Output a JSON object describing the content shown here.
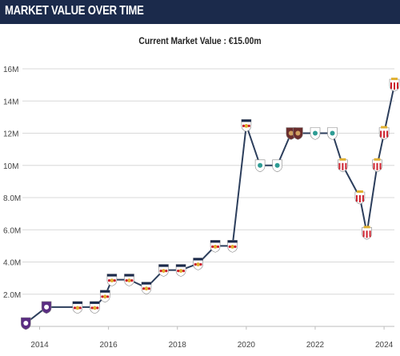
{
  "header": {
    "title": "MARKET VALUE OVER TIME"
  },
  "subtitle": "Current Market Value : €15.00m",
  "colors": {
    "header_bg": "#1b2a4b",
    "line": "#2c3e5c",
    "grid": "#d8d8d8",
    "badge_red": "#cc1f2b",
    "badge_white": "#ffffff",
    "badge_gold": "#e0b030",
    "badge_purple": "#5a2d82",
    "badge_teal": "#2e9c94"
  },
  "chart_data": {
    "type": "line",
    "title": "",
    "xlabel": "",
    "ylabel": "",
    "xlim": [
      2013.5,
      2024.3
    ],
    "ylim": [
      0,
      16
    ],
    "y_ticks": [
      2,
      4,
      6,
      8,
      10,
      12,
      14,
      16
    ],
    "y_tick_labels": [
      "2.0M",
      "4.0M",
      "6.0M",
      "8.0M",
      "10M",
      "12M",
      "14M",
      "16M"
    ],
    "x_ticks": [
      2014,
      2016,
      2018,
      2020,
      2022,
      2024
    ],
    "x_tick_labels": [
      "2014",
      "2016",
      "2018",
      "2020",
      "2022",
      "2024"
    ],
    "grid": true,
    "series": [
      {
        "values": [
          {
            "x": 2013.6,
            "y": 0.2,
            "badge": "purple-crest"
          },
          {
            "x": 2014.2,
            "y": 1.2,
            "badge": "purple-crest"
          },
          {
            "x": 2015.1,
            "y": 1.2,
            "badge": "redbull-crest"
          },
          {
            "x": 2015.6,
            "y": 1.2,
            "badge": "redbull-crest"
          },
          {
            "x": 2015.9,
            "y": 1.9,
            "badge": "redbull-crest"
          },
          {
            "x": 2016.1,
            "y": 2.9,
            "badge": "redbull-crest"
          },
          {
            "x": 2016.6,
            "y": 2.9,
            "badge": "redbull-crest"
          },
          {
            "x": 2017.1,
            "y": 2.4,
            "badge": "redbull-crest"
          },
          {
            "x": 2017.6,
            "y": 3.5,
            "badge": "redbull-crest"
          },
          {
            "x": 2018.1,
            "y": 3.5,
            "badge": "redbull-crest"
          },
          {
            "x": 2018.6,
            "y": 3.9,
            "badge": "redbull-crest"
          },
          {
            "x": 2019.1,
            "y": 5.0,
            "badge": "redbull-crest"
          },
          {
            "x": 2019.6,
            "y": 5.0,
            "badge": "redbull-crest"
          },
          {
            "x": 2020.0,
            "y": 12.5,
            "badge": "redbull-crest"
          },
          {
            "x": 2020.4,
            "y": 10.0,
            "badge": "liverbird-crest"
          },
          {
            "x": 2020.9,
            "y": 10.0,
            "badge": "liverbird-crest"
          },
          {
            "x": 2021.3,
            "y": 12.0,
            "badge": "brown-crest"
          },
          {
            "x": 2021.5,
            "y": 12.0,
            "badge": "brown-crest"
          },
          {
            "x": 2022.0,
            "y": 12.0,
            "badge": "liverbird-crest"
          },
          {
            "x": 2022.5,
            "y": 12.0,
            "badge": "liverbird-crest"
          },
          {
            "x": 2022.8,
            "y": 10.0,
            "badge": "monaco-crest"
          },
          {
            "x": 2023.3,
            "y": 8.0,
            "badge": "monaco-crest"
          },
          {
            "x": 2023.5,
            "y": 5.8,
            "badge": "monaco-crest"
          },
          {
            "x": 2023.8,
            "y": 10.0,
            "badge": "monaco-crest"
          },
          {
            "x": 2024.0,
            "y": 12.0,
            "badge": "monaco-crest"
          },
          {
            "x": 2024.3,
            "y": 15.0,
            "badge": "monaco-crest"
          }
        ]
      }
    ]
  }
}
